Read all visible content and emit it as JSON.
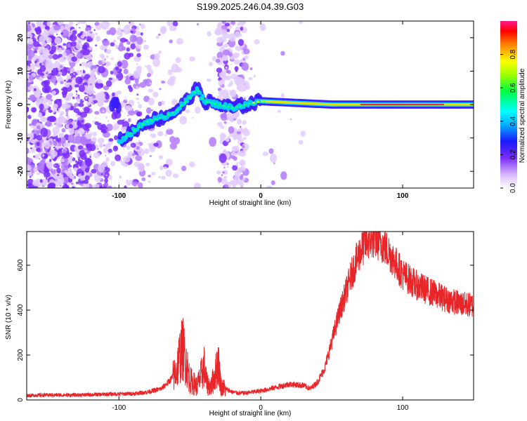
{
  "chart_data": [
    {
      "type": "heatmap",
      "title": "S199.2025.246.04.39.G03",
      "xlabel": "Height of straight line (km)",
      "ylabel": "Frequency (Hz)",
      "xlim": [
        -165,
        150
      ],
      "ylim": [
        -25,
        25
      ],
      "xticks": [
        -100,
        0,
        100
      ],
      "yticks": [
        -20,
        -10,
        0,
        10,
        20
      ],
      "colorbar": {
        "label": "Normalized spectral amplitude",
        "range": [
          0,
          1
        ],
        "ticks": [
          "0.0",
          "0.2",
          "0.4",
          "0.6",
          "0.8"
        ]
      },
      "ridge": [
        {
          "x": -100,
          "y": -11
        },
        {
          "x": -90,
          "y": -8
        },
        {
          "x": -80,
          "y": -5
        },
        {
          "x": -70,
          "y": -4
        },
        {
          "x": -60,
          "y": -2
        },
        {
          "x": -50,
          "y": 2
        },
        {
          "x": -45,
          "y": 5
        },
        {
          "x": -40,
          "y": 1
        },
        {
          "x": -30,
          "y": 0
        },
        {
          "x": -20,
          "y": -1
        },
        {
          "x": -10,
          "y": 0
        },
        {
          "x": 0,
          "y": 1
        },
        {
          "x": 50,
          "y": 0
        },
        {
          "x": 90,
          "y": 0
        },
        {
          "x": 150,
          "y": 0
        }
      ]
    },
    {
      "type": "line",
      "xlabel": "Height of straight line (km)",
      "ylabel": "SNR (10 * v/v)",
      "xlim": [
        -165,
        150
      ],
      "ylim": [
        0,
        750
      ],
      "xticks": [
        -100,
        0,
        100
      ],
      "yticks": [
        0,
        200,
        400,
        600
      ],
      "color": "#e8262a",
      "series": [
        {
          "name": "SNR",
          "x": [
            -165,
            -150,
            -130,
            -110,
            -90,
            -80,
            -70,
            -65,
            -60,
            -57,
            -55,
            -52,
            -50,
            -45,
            -42,
            -40,
            -38,
            -35,
            -32,
            -30,
            -28,
            -25,
            -20,
            -15,
            -10,
            0,
            10,
            20,
            30,
            35,
            40,
            45,
            50,
            55,
            60,
            65,
            70,
            75,
            80,
            85,
            90,
            95,
            100,
            110,
            120,
            130,
            140,
            150
          ],
          "values": [
            20,
            22,
            22,
            25,
            28,
            35,
            50,
            80,
            120,
            200,
            230,
            150,
            90,
            60,
            110,
            150,
            70,
            60,
            120,
            170,
            60,
            50,
            35,
            30,
            32,
            40,
            55,
            70,
            65,
            50,
            80,
            140,
            260,
            380,
            480,
            580,
            660,
            710,
            720,
            700,
            660,
            610,
            560,
            510,
            480,
            450,
            430,
            420
          ]
        }
      ]
    }
  ]
}
